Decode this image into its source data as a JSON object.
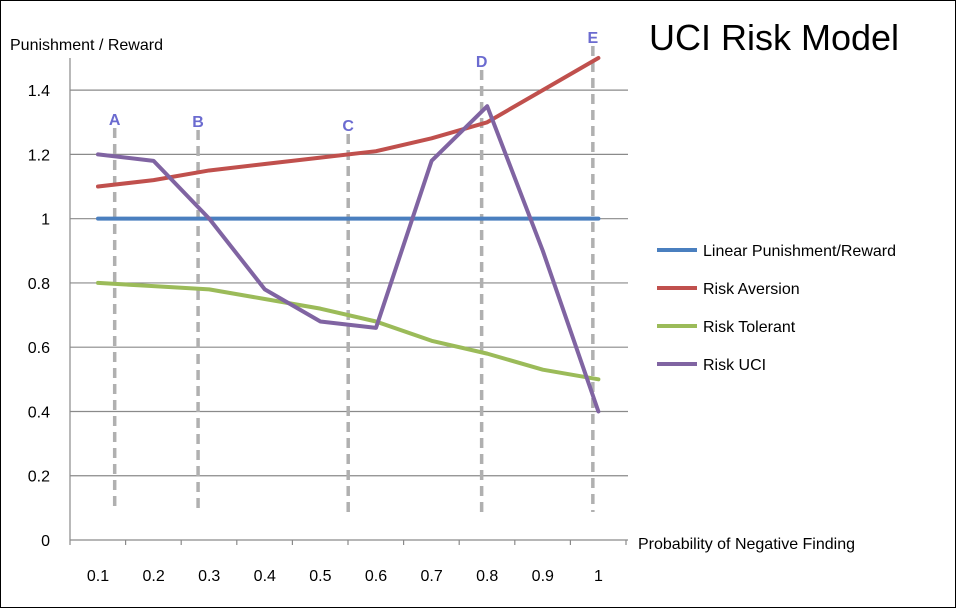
{
  "chart_data": {
    "type": "line",
    "title": "UCI Risk Model",
    "xlabel": "Probability of Negative Finding",
    "ylabel": "Punishment / Reward",
    "ylim": [
      0,
      1.5
    ],
    "yticks": [
      "0",
      "0.2",
      "0.4",
      "0.6",
      "0.8",
      "1",
      "1.2",
      "1.4"
    ],
    "categories": [
      "0.1",
      "0.2",
      "0.3",
      "0.4",
      "0.5",
      "0.6",
      "0.7",
      "0.8",
      "0.9",
      "1"
    ],
    "grid": "horizontal",
    "legend_position": "right",
    "series": [
      {
        "name": "Linear Punishment/Reward",
        "color": "#4a7fbf",
        "values": [
          1,
          1,
          1,
          1,
          1,
          1,
          1,
          1,
          1,
          1
        ]
      },
      {
        "name": "Risk Aversion",
        "color": "#c0504d",
        "values": [
          1.1,
          1.12,
          1.15,
          1.17,
          1.19,
          1.21,
          1.25,
          1.3,
          1.4,
          1.5
        ]
      },
      {
        "name": "Risk Tolerant",
        "color": "#9bbb59",
        "values": [
          0.8,
          0.79,
          0.78,
          0.75,
          0.72,
          0.68,
          0.62,
          0.58,
          0.53,
          0.5
        ]
      },
      {
        "name": "Risk UCI",
        "color": "#8064a2",
        "values": [
          1.2,
          1.18,
          1.0,
          0.78,
          0.68,
          0.66,
          1.18,
          1.35,
          0.9,
          0.4
        ]
      }
    ],
    "markers": [
      {
        "label": "A",
        "x": 0.13
      },
      {
        "label": "B",
        "x": 0.28
      },
      {
        "label": "C",
        "x": 0.55
      },
      {
        "label": "D",
        "x": 0.79
      },
      {
        "label": "E",
        "x": 0.99
      }
    ],
    "marker_line_color": "#b0b0b0",
    "marker_label_color": "#6b6bd0"
  }
}
